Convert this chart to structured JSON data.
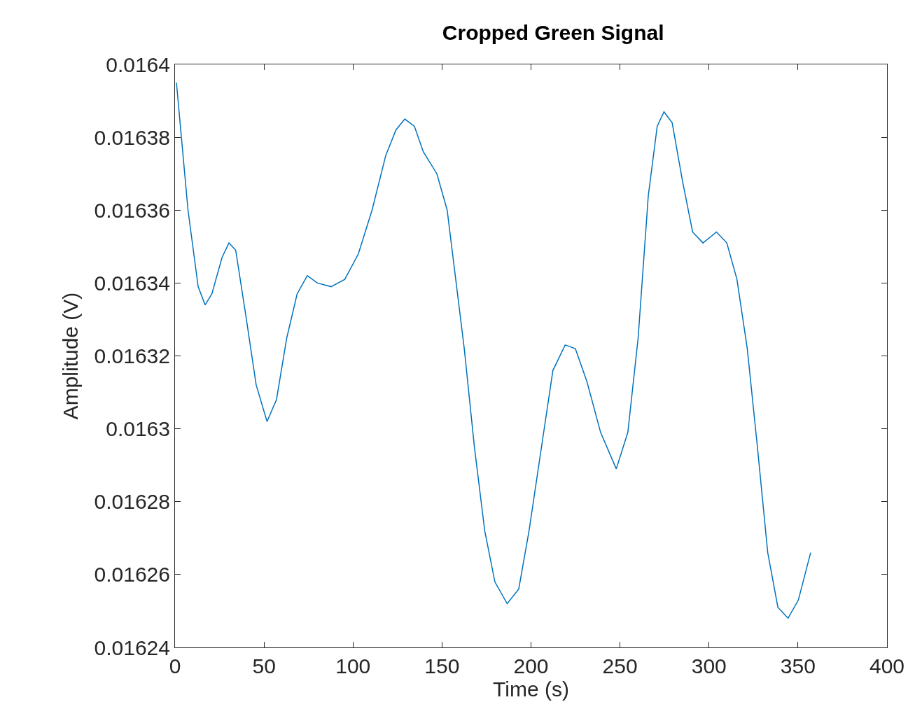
{
  "chart_data": {
    "type": "line",
    "title": "Cropped Green Signal",
    "xlabel": "Time (s)",
    "ylabel": "Amplitude (V)",
    "x": [
      0.8,
      3.4,
      7.3,
      13,
      16.9,
      20.7,
      26.4,
      30.3,
      34.1,
      39.8,
      45.6,
      51.7,
      57,
      62.8,
      68.6,
      74.3,
      80,
      87.7,
      95.4,
      103,
      110.7,
      118.4,
      124.1,
      129.1,
      134.5,
      139.5,
      147.1,
      152.9,
      156.7,
      162.5,
      168.2,
      174,
      179.7,
      186.6,
      193.1,
      198.9,
      206.5,
      212.3,
      219.2,
      224.9,
      231.4,
      239.1,
      247.9,
      254.4,
      260.2,
      265.9,
      270.9,
      274.7,
      279.3,
      285.1,
      290.8,
      296.6,
      304.2,
      310,
      315.7,
      321.5,
      327.2,
      333,
      338.7,
      344.4,
      350.2,
      357.1
    ],
    "series": [
      {
        "color": "#0072bd",
        "values": [
          0.016395,
          0.016381,
          0.01636,
          0.016339,
          0.016334,
          0.016337,
          0.016347,
          0.016351,
          0.016349,
          0.016331,
          0.016312,
          0.016302,
          0.016308,
          0.016325,
          0.016337,
          0.016342,
          0.01634,
          0.016339,
          0.016341,
          0.016348,
          0.01636,
          0.016375,
          0.016382,
          0.016385,
          0.016383,
          0.016376,
          0.01637,
          0.01636,
          0.016345,
          0.016322,
          0.016295,
          0.016272,
          0.016258,
          0.016252,
          0.016256,
          0.016272,
          0.016297,
          0.016316,
          0.016323,
          0.016322,
          0.016313,
          0.016299,
          0.016289,
          0.016299,
          0.016325,
          0.016364,
          0.016383,
          0.016387,
          0.016384,
          0.016368,
          0.016354,
          0.016351,
          0.016354,
          0.016351,
          0.016341,
          0.016322,
          0.016295,
          0.016266,
          0.016251,
          0.016248,
          0.016253,
          0.016266
        ]
      }
    ],
    "xlim": [
      0,
      400
    ],
    "xticks": [
      0,
      50,
      100,
      150,
      200,
      250,
      300,
      350,
      400
    ],
    "ylim": [
      0.01624,
      0.0164
    ],
    "yticks": [
      0.01624,
      0.01626,
      0.01628,
      0.0163,
      0.01632,
      0.01634,
      0.01636,
      0.01638,
      0.0164
    ],
    "grid": false,
    "marker": "none",
    "line_style": "solid"
  }
}
